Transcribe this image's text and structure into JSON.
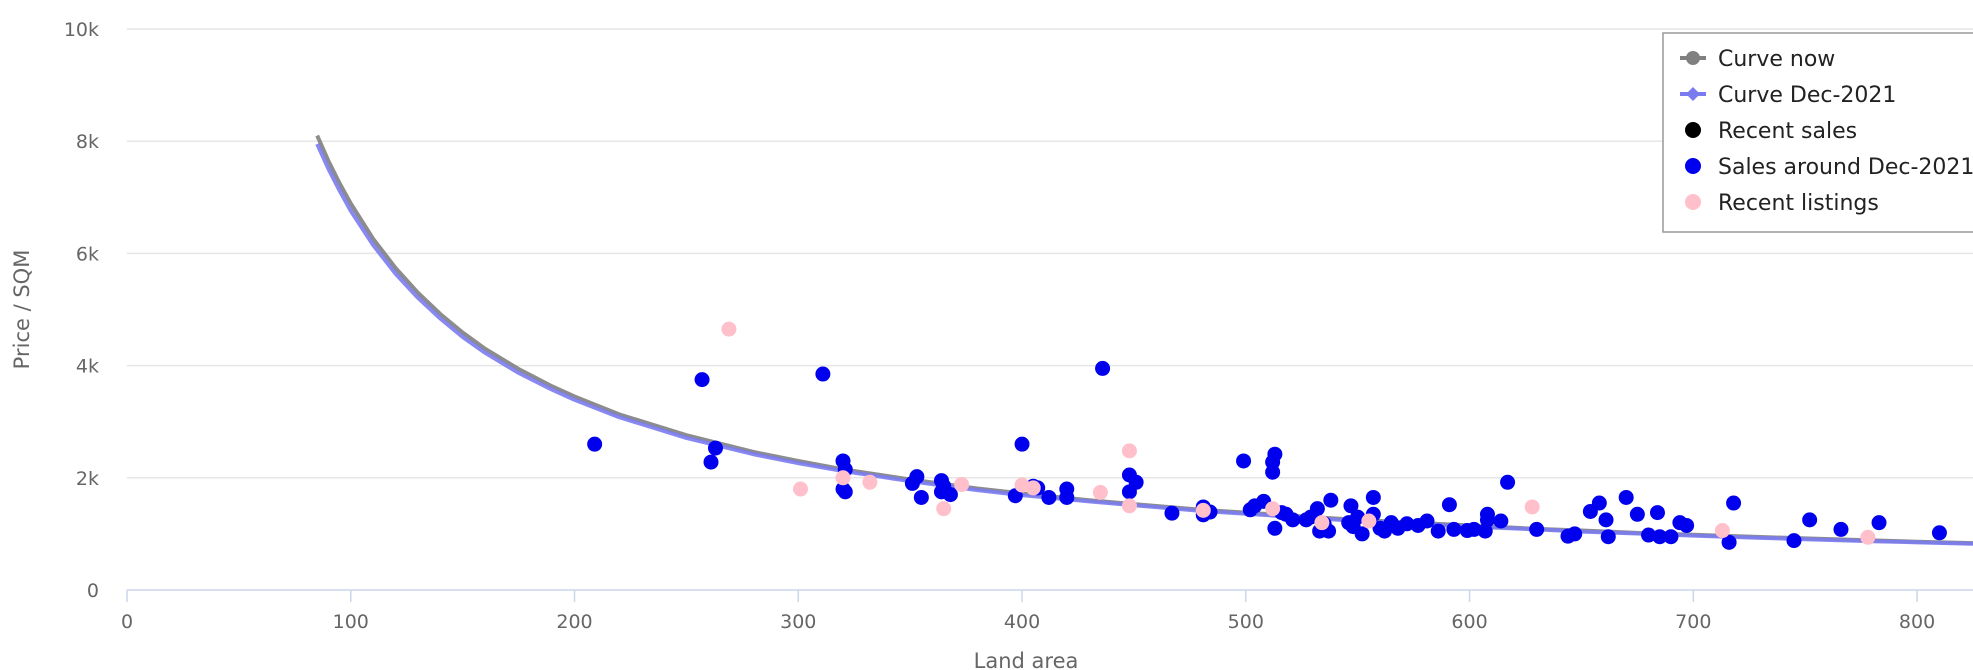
{
  "chart_data": {
    "type": "scatter",
    "title": "",
    "xlabel": "Land area",
    "ylabel": "Price / SQM",
    "xlim": [
      0,
      825
    ],
    "ylim": [
      0,
      10000
    ],
    "x_ticks": [
      0,
      100,
      200,
      300,
      400,
      500,
      600,
      700,
      800
    ],
    "x_tick_labels": [
      "0",
      "100",
      "200",
      "300",
      "400",
      "500",
      "600",
      "700",
      "800"
    ],
    "y_ticks": [
      0,
      2000,
      4000,
      6000,
      8000,
      10000
    ],
    "y_tick_labels": [
      "0",
      "2k",
      "4k",
      "6k",
      "8k",
      "10k"
    ],
    "grid": true,
    "legend_position": "top-right",
    "series": [
      {
        "name": "Curve now",
        "kind": "curve",
        "color": "#808080",
        "x": [
          85,
          90,
          95,
          100,
          110,
          120,
          130,
          140,
          150,
          160,
          175,
          190,
          200,
          220,
          250,
          280,
          300,
          320,
          350,
          380,
          400,
          430,
          450,
          480,
          500,
          530,
          550,
          580,
          600,
          630,
          650,
          680,
          700,
          730,
          750,
          780,
          800,
          825
        ],
        "y": [
          8100,
          7650,
          7250,
          6890,
          6260,
          5740,
          5300,
          4920,
          4590,
          4300,
          3940,
          3630,
          3450,
          3130,
          2760,
          2460,
          2300,
          2150,
          1970,
          1810,
          1720,
          1600,
          1530,
          1430,
          1380,
          1300,
          1250,
          1190,
          1150,
          1090,
          1060,
          1010,
          985,
          945,
          920,
          885,
          860,
          835
        ]
      },
      {
        "name": "Curve Dec-2021",
        "kind": "curve",
        "color": "#7b7bf0",
        "x": [
          85,
          90,
          95,
          100,
          110,
          120,
          130,
          140,
          150,
          160,
          175,
          190,
          200,
          220,
          250,
          280,
          300,
          320,
          350,
          380,
          400,
          430,
          450,
          480,
          500,
          530,
          550,
          580,
          600,
          630,
          650,
          680,
          700,
          730,
          750,
          780,
          800,
          825
        ],
        "y": [
          7950,
          7510,
          7120,
          6760,
          6150,
          5640,
          5210,
          4840,
          4510,
          4230,
          3870,
          3570,
          3390,
          3080,
          2710,
          2420,
          2260,
          2120,
          1940,
          1780,
          1690,
          1580,
          1510,
          1410,
          1360,
          1280,
          1230,
          1170,
          1130,
          1080,
          1040,
          1000,
          970,
          930,
          905,
          870,
          850,
          825
        ]
      },
      {
        "name": "Recent sales",
        "kind": "points",
        "color": "#000000",
        "x": [],
        "y": []
      },
      {
        "name": "Sales around Dec-2021",
        "kind": "points",
        "color": "#0000ee",
        "x": [
          209,
          257,
          261,
          263,
          311,
          320,
          320,
          321,
          321,
          351,
          353,
          355,
          364,
          364,
          365,
          368,
          397,
          400,
          405,
          407,
          412,
          420,
          420,
          436,
          448,
          448,
          451,
          467,
          481,
          481,
          484,
          499,
          502,
          504,
          508,
          512,
          512,
          513,
          513,
          516,
          518,
          521,
          527,
          529,
          532,
          533,
          535,
          537,
          538,
          546,
          547,
          548,
          550,
          552,
          557,
          557,
          560,
          562,
          565,
          568,
          572,
          577,
          581,
          586,
          591,
          593,
          599,
          602,
          607,
          608,
          608,
          614,
          617,
          630,
          644,
          647,
          654,
          658,
          661,
          662,
          670,
          675,
          680,
          684,
          685,
          690,
          694,
          697,
          716,
          718,
          745,
          752,
          766,
          783,
          810
        ],
        "y": [
          2600,
          3750,
          2280,
          2530,
          3850,
          1800,
          2300,
          2150,
          1750,
          1900,
          2020,
          1650,
          1950,
          1750,
          1850,
          1700,
          1680,
          2600,
          1850,
          1820,
          1650,
          1800,
          1650,
          3950,
          1750,
          2050,
          1920,
          1370,
          1480,
          1340,
          1390,
          2300,
          1430,
          1500,
          1580,
          2100,
          2280,
          2420,
          1100,
          1380,
          1350,
          1250,
          1250,
          1300,
          1450,
          1050,
          1180,
          1050,
          1600,
          1200,
          1500,
          1130,
          1300,
          1000,
          1650,
          1350,
          1100,
          1050,
          1200,
          1100,
          1180,
          1150,
          1230,
          1050,
          1520,
          1080,
          1060,
          1080,
          1050,
          1350,
          1250,
          1230,
          1920,
          1080,
          960,
          1000,
          1400,
          1550,
          1250,
          950,
          1650,
          1350,
          980,
          1380,
          950,
          950,
          1200,
          1150,
          850,
          1550,
          880,
          1250,
          1080,
          1200,
          1020
        ]
      },
      {
        "name": "Recent listings",
        "kind": "points",
        "color": "#ffc0cb",
        "x": [
          269,
          301,
          320,
          332,
          365,
          373,
          400,
          405,
          435,
          448,
          448,
          481,
          512,
          534,
          555,
          628,
          713,
          778
        ],
        "y": [
          4650,
          1800,
          2000,
          1920,
          1450,
          1880,
          1870,
          1820,
          1740,
          2480,
          1500,
          1420,
          1450,
          1200,
          1230,
          1480,
          1060,
          940
        ]
      }
    ]
  }
}
